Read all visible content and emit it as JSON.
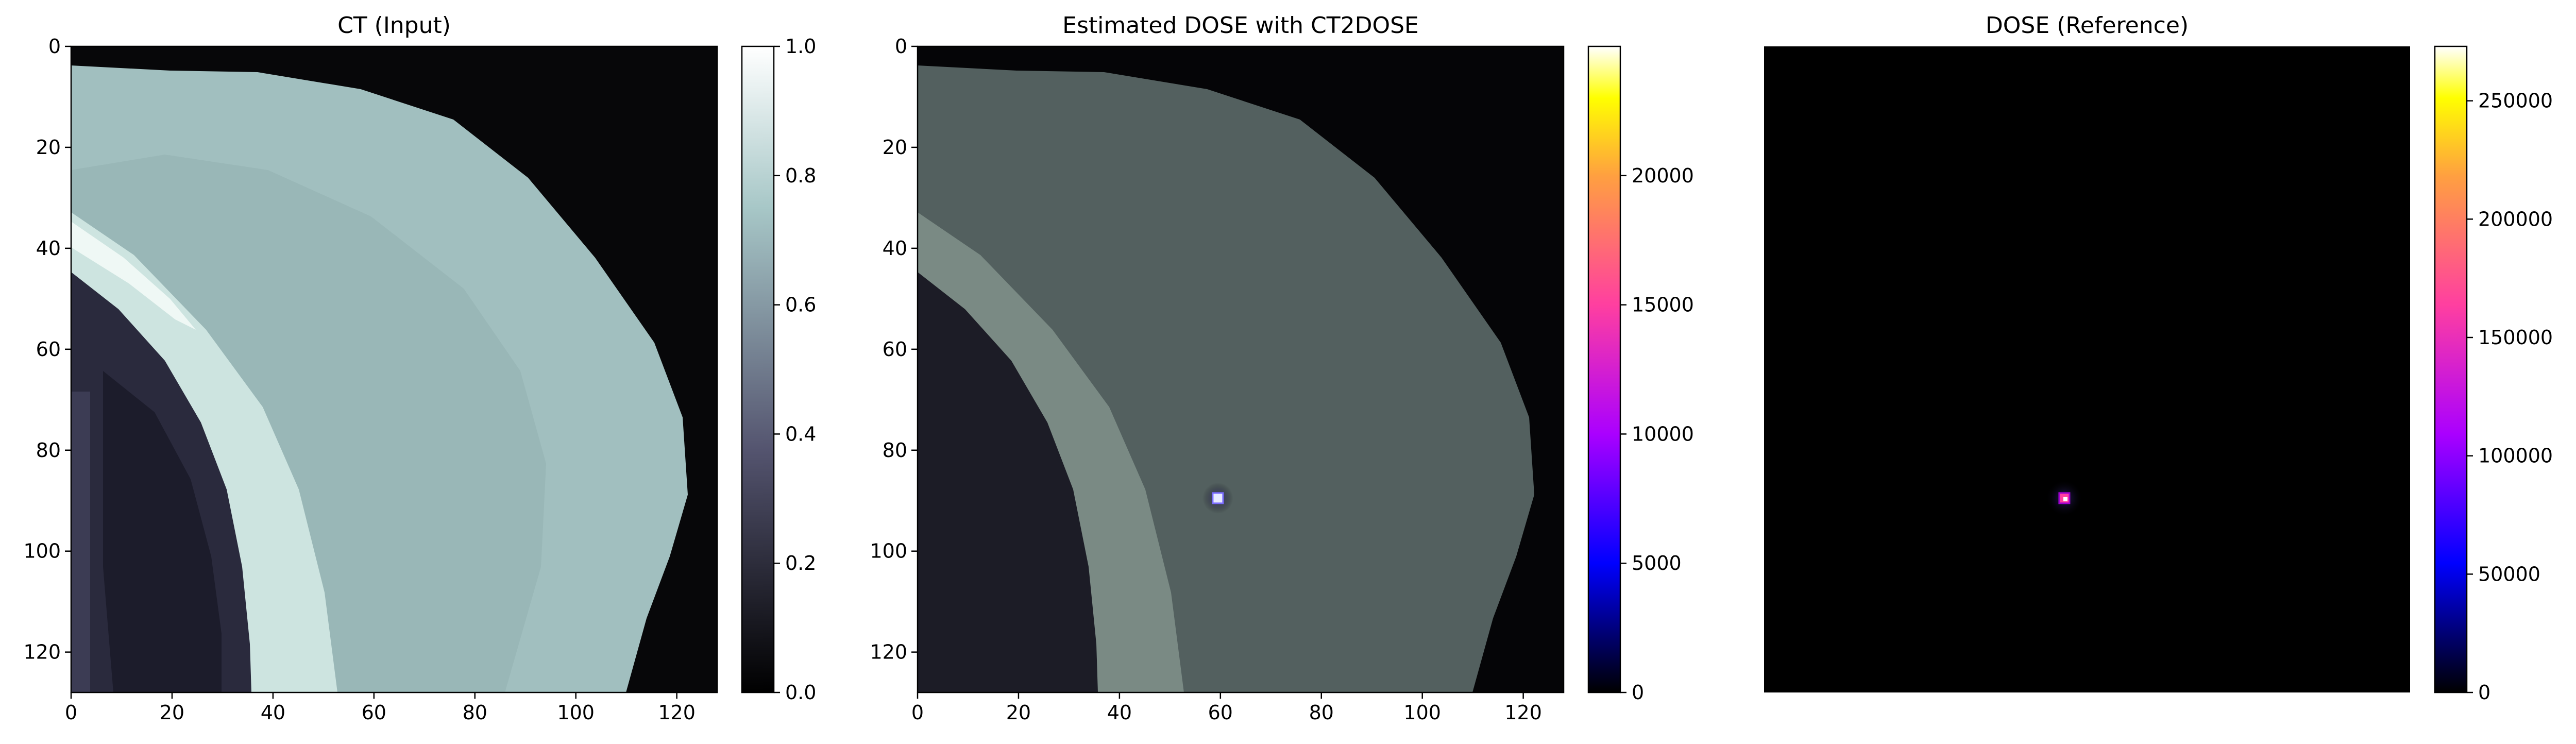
{
  "chart_data": [
    {
      "type": "heatmap",
      "title": "CT (Input)",
      "xlabel": "",
      "ylabel": "",
      "xlim": [
        0,
        128
      ],
      "ylim": [
        128,
        0
      ],
      "x_ticks": [
        0,
        20,
        40,
        60,
        80,
        100,
        120
      ],
      "y_ticks": [
        0,
        20,
        40,
        60,
        80,
        100,
        120
      ],
      "colormap": "bone",
      "colorbar": {
        "min": 0.0,
        "max": 1.0,
        "ticks": [
          "0.0",
          "0.2",
          "0.4",
          "0.6",
          "0.8",
          "1.0"
        ]
      },
      "show_axes": true
    },
    {
      "type": "heatmap",
      "title": "Estimated DOSE with CT2DOSE",
      "xlabel": "",
      "ylabel": "",
      "xlim": [
        0,
        128
      ],
      "ylim": [
        128,
        0
      ],
      "x_ticks": [
        0,
        20,
        40,
        60,
        80,
        100,
        120
      ],
      "y_ticks": [
        0,
        20,
        40,
        60,
        80,
        100,
        120
      ],
      "colormap": "gnuplot2",
      "colorbar": {
        "min": 0,
        "max": 25000,
        "ticks": [
          "0",
          "5000",
          "10000",
          "15000",
          "20000"
        ]
      },
      "hotspot": {
        "x": 59,
        "y": 89
      },
      "show_axes": true
    },
    {
      "type": "heatmap",
      "title": "DOSE (Reference)",
      "xlabel": "",
      "ylabel": "",
      "xlim": [
        0,
        128
      ],
      "ylim": [
        128,
        0
      ],
      "colormap": "gnuplot2",
      "colorbar": {
        "min": 0,
        "max": 273000,
        "ticks": [
          "0",
          "50000",
          "100000",
          "150000",
          "200000",
          "250000"
        ]
      },
      "hotspot": {
        "x": 59,
        "y": 89
      },
      "show_axes": false
    }
  ],
  "colors": {
    "bone_dark": "#000000",
    "bone_mid": "#54546f",
    "bone_light": "#a7c7c7",
    "bone_white": "#ffffff",
    "hot_dark": "#000000",
    "hot_blue": "#0000ff",
    "hot_purple": "#aa00ff",
    "hot_pink": "#ff3fa0",
    "hot_orange": "#ffa040",
    "hot_yellow": "#ffff00",
    "hot_white": "#ffffff"
  }
}
